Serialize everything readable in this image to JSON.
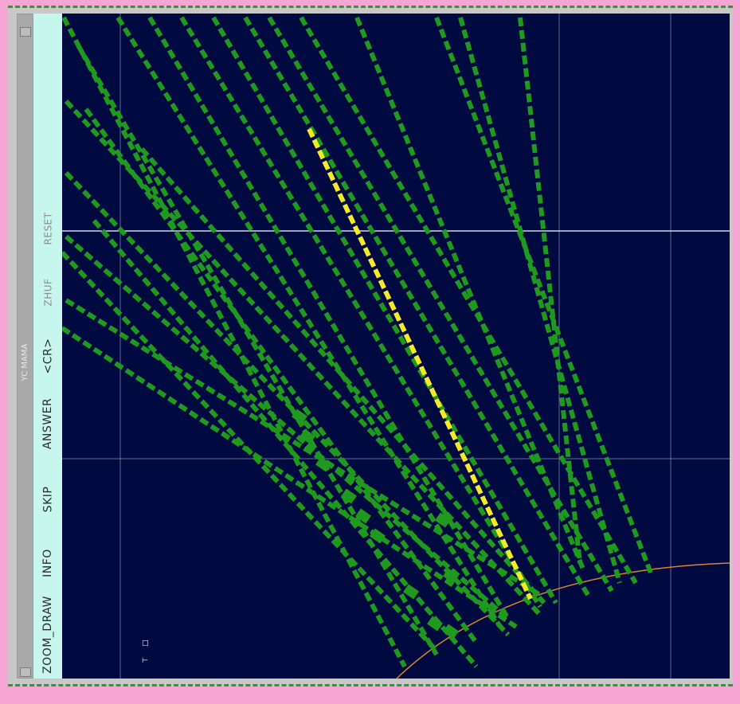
{
  "app": {
    "sidebar_title": "YC MAMA"
  },
  "menu": {
    "reset": "RESET",
    "zhuf": "ZHUF",
    "cr": "<CR>",
    "answer": "ANSWER",
    "skip": "SKIP",
    "info": "INFO",
    "zoom_draw": "ZOOM_DRAW"
  },
  "marks": {
    "a": "□",
    "b": "⊢"
  },
  "colors": {
    "background": "#000940",
    "track": "#1f9a1f",
    "selected_track": "#f4ea2a",
    "boundary": "#d8862a",
    "grid": "#8d93b8",
    "menu_bg": "#c7f6ef",
    "frame_bg": "#f6a6d2"
  },
  "tracks": [
    {
      "x0": 0,
      "y0": 0,
      "x1": 0,
      "y1": 0,
      "style": "green"
    }
  ]
}
